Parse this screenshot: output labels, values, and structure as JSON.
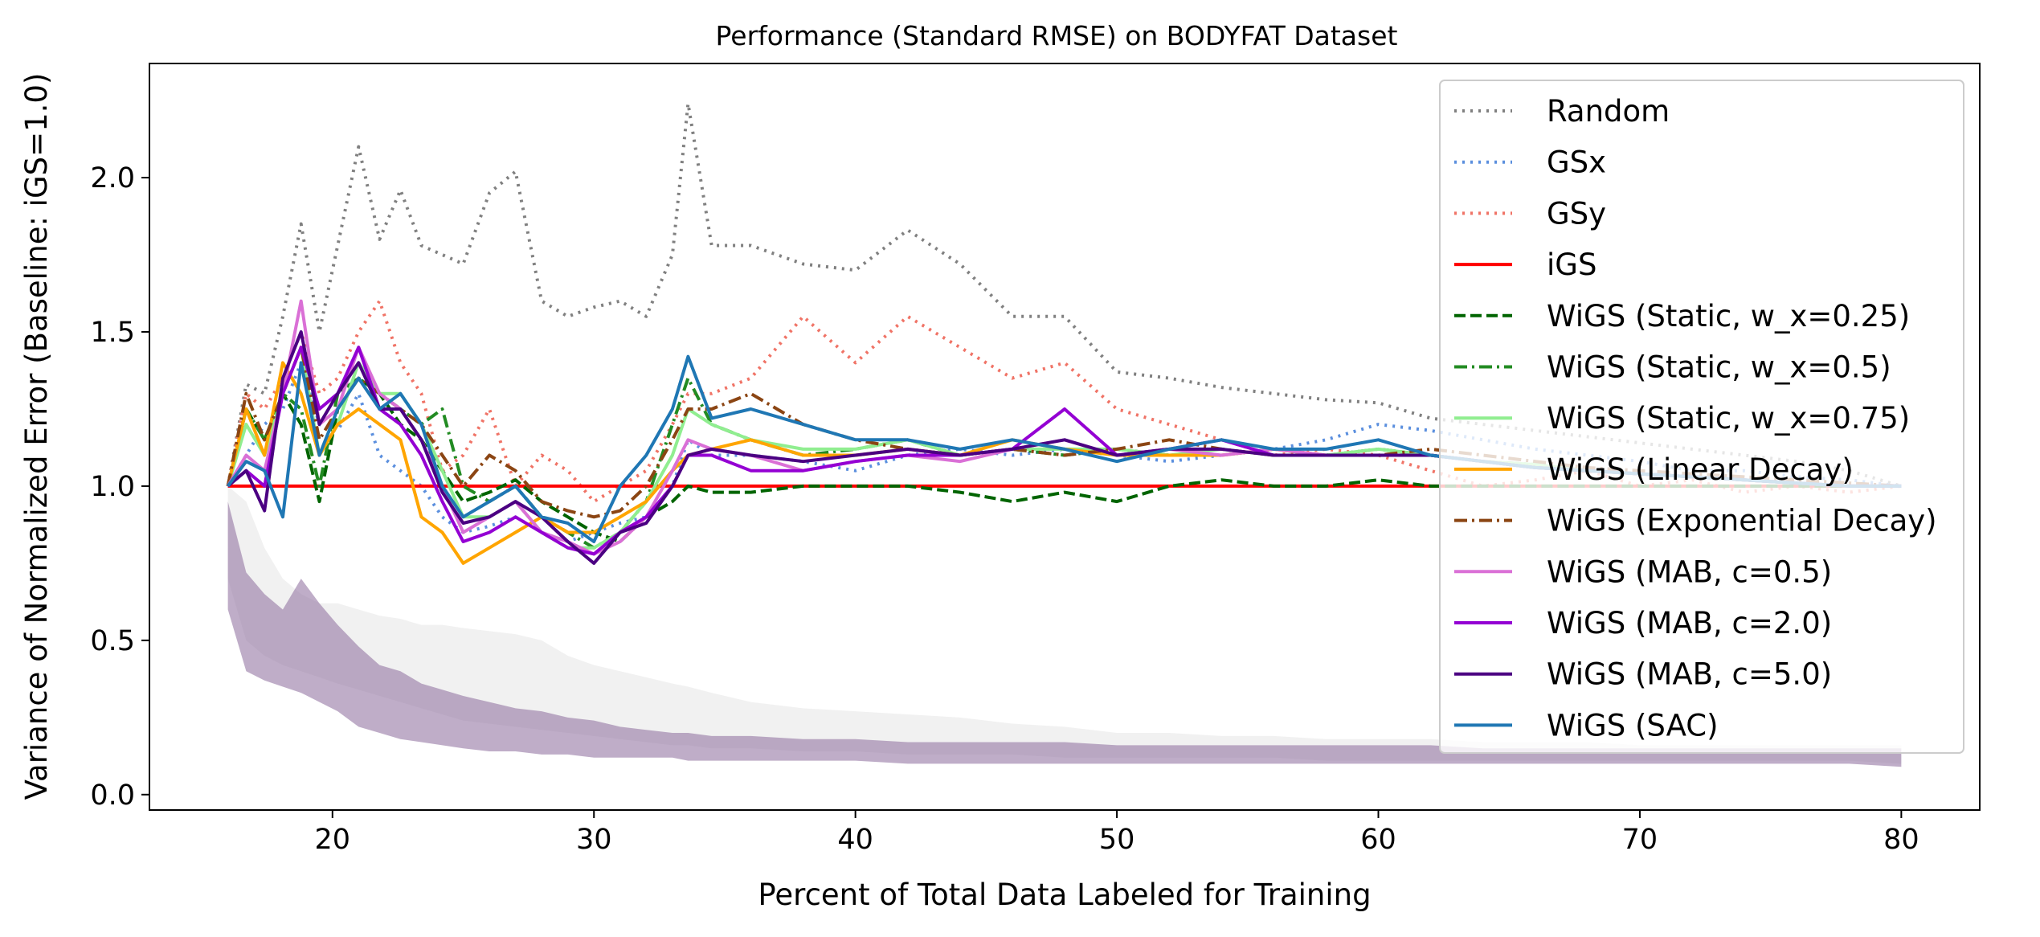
{
  "chart_data": {
    "type": "line",
    "title": "Performance (Standard RMSE) on BODYFAT Dataset",
    "xlabel": "Percent of Total Data Labeled for Training",
    "ylabel": "Variance of Normalized Error (Baseline: iGS=1.0)",
    "xlim": [
      13,
      83
    ],
    "ylim": [
      -0.05,
      2.37
    ],
    "xticks": [
      20,
      30,
      40,
      50,
      60,
      70,
      80
    ],
    "yticks": [
      0.0,
      0.5,
      1.0,
      1.5,
      2.0
    ],
    "xtick_labels": [
      "20",
      "30",
      "40",
      "50",
      "60",
      "70",
      "80"
    ],
    "ytick_labels": [
      "0.0",
      "0.5",
      "1.0",
      "1.5",
      "2.0"
    ],
    "grid": false,
    "legend_position": "upper right",
    "x": [
      16,
      16.7,
      17.4,
      18.1,
      18.8,
      19.5,
      20.2,
      21,
      21.8,
      22.6,
      23.4,
      24.2,
      25,
      26,
      27,
      28,
      29,
      30,
      31,
      32,
      33,
      33.6,
      34.5,
      36,
      38,
      40,
      42,
      44,
      46,
      48,
      50,
      52,
      54,
      56,
      58,
      60,
      62,
      64,
      66,
      68,
      70,
      72,
      74,
      76,
      78,
      80
    ],
    "series": [
      {
        "name": "Random",
        "color": "#808080",
        "style": "dotted",
        "values": [
          1.0,
          1.33,
          1.3,
          1.55,
          1.85,
          1.5,
          1.78,
          2.1,
          1.8,
          1.96,
          1.78,
          1.75,
          1.72,
          1.95,
          2.02,
          1.6,
          1.55,
          1.58,
          1.6,
          1.55,
          1.75,
          2.24,
          1.78,
          1.78,
          1.72,
          1.7,
          1.83,
          1.72,
          1.55,
          1.55,
          1.37,
          1.35,
          1.32,
          1.3,
          1.28,
          1.27,
          1.22,
          1.2,
          1.18,
          1.16,
          1.14,
          1.12,
          1.1,
          1.08,
          1.05,
          1.0
        ]
      },
      {
        "name": "GSx",
        "color": "#5b8fde",
        "style": "dotted",
        "values": [
          1.0,
          1.1,
          1.2,
          1.25,
          1.4,
          1.2,
          1.18,
          1.3,
          1.1,
          1.05,
          1.0,
          0.9,
          0.85,
          0.87,
          0.9,
          0.85,
          0.82,
          0.85,
          0.88,
          0.9,
          1.0,
          1.15,
          1.1,
          1.1,
          1.08,
          1.05,
          1.1,
          1.12,
          1.1,
          1.12,
          1.1,
          1.08,
          1.1,
          1.12,
          1.15,
          1.2,
          1.18,
          1.15,
          1.12,
          1.1,
          1.08,
          1.05,
          1.05,
          1.03,
          1.02,
          1.0
        ]
      },
      {
        "name": "GSy",
        "color": "#f07366",
        "style": "dotted",
        "values": [
          1.0,
          1.3,
          1.25,
          1.35,
          1.5,
          1.3,
          1.35,
          1.5,
          1.6,
          1.4,
          1.3,
          1.05,
          1.1,
          1.25,
          1.0,
          1.1,
          1.05,
          0.95,
          1.0,
          1.05,
          1.2,
          1.3,
          1.3,
          1.35,
          1.55,
          1.4,
          1.55,
          1.45,
          1.35,
          1.4,
          1.25,
          1.2,
          1.15,
          1.1,
          1.12,
          1.1,
          1.05,
          1.0,
          1.02,
          1.05,
          1.0,
          1.02,
          0.98,
          1.0,
          0.98,
          1.0
        ]
      },
      {
        "name": "iGS",
        "color": "#ff0000",
        "style": "solid",
        "values": [
          1.0,
          1.0,
          1.0,
          1.0,
          1.0,
          1.0,
          1.0,
          1.0,
          1.0,
          1.0,
          1.0,
          1.0,
          1.0,
          1.0,
          1.0,
          1.0,
          1.0,
          1.0,
          1.0,
          1.0,
          1.0,
          1.0,
          1.0,
          1.0,
          1.0,
          1.0,
          1.0,
          1.0,
          1.0,
          1.0,
          1.0,
          1.0,
          1.0,
          1.0,
          1.0,
          1.0,
          1.0,
          1.0,
          1.0,
          1.0,
          1.0,
          1.0,
          1.0,
          1.0,
          1.0,
          1.0
        ]
      },
      {
        "name": "WiGS (Static, w_x=0.25)",
        "color": "#006400",
        "style": "dashed",
        "values": [
          1.0,
          1.25,
          1.15,
          1.3,
          1.2,
          0.95,
          1.25,
          1.35,
          1.3,
          1.2,
          1.15,
          1.05,
          0.95,
          0.98,
          1.02,
          0.95,
          0.9,
          0.85,
          0.82,
          0.9,
          0.95,
          1.0,
          0.98,
          0.98,
          1.0,
          1.0,
          1.0,
          0.98,
          0.95,
          0.98,
          0.95,
          1.0,
          1.02,
          1.0,
          1.0,
          1.02,
          1.0,
          1.0,
          1.0,
          1.0,
          1.0,
          1.0,
          1.0,
          1.0,
          1.0,
          1.0
        ]
      },
      {
        "name": "WiGS (Static, w_x=0.5)",
        "color": "#228b22",
        "style": "dashdot",
        "values": [
          1.0,
          1.25,
          1.15,
          1.3,
          1.25,
          1.0,
          1.3,
          1.35,
          1.3,
          1.25,
          1.2,
          1.25,
          1.0,
          0.95,
          1.0,
          0.9,
          0.85,
          0.8,
          0.85,
          0.95,
          1.2,
          1.35,
          1.2,
          1.15,
          1.1,
          1.12,
          1.15,
          1.1,
          1.12,
          1.1,
          1.12,
          1.1,
          1.1,
          1.12,
          1.1,
          1.12,
          1.1,
          1.08,
          1.07,
          1.05,
          1.04,
          1.03,
          1.02,
          1.01,
          1.0,
          1.0
        ]
      },
      {
        "name": "WiGS (Static, w_x=0.75)",
        "color": "#90ee90",
        "style": "solid",
        "values": [
          1.0,
          1.2,
          1.1,
          1.3,
          1.45,
          1.1,
          1.2,
          1.4,
          1.3,
          1.3,
          1.2,
          1.05,
          0.9,
          0.9,
          0.95,
          0.85,
          0.8,
          0.8,
          0.85,
          0.95,
          1.1,
          1.25,
          1.2,
          1.15,
          1.12,
          1.12,
          1.15,
          1.1,
          1.12,
          1.12,
          1.12,
          1.1,
          1.12,
          1.1,
          1.1,
          1.12,
          1.1,
          1.08,
          1.07,
          1.05,
          1.04,
          1.03,
          1.02,
          1.01,
          1.0,
          1.0
        ]
      },
      {
        "name": "WiGS (Linear Decay)",
        "color": "#ffa500",
        "style": "solid",
        "values": [
          1.0,
          1.25,
          1.1,
          1.4,
          1.3,
          1.1,
          1.2,
          1.25,
          1.2,
          1.15,
          0.9,
          0.85,
          0.75,
          0.8,
          0.85,
          0.9,
          0.85,
          0.85,
          0.9,
          0.95,
          1.05,
          1.1,
          1.12,
          1.15,
          1.1,
          1.1,
          1.12,
          1.1,
          1.15,
          1.12,
          1.1,
          1.1,
          1.1,
          1.12,
          1.1,
          1.1,
          1.1,
          1.08,
          1.06,
          1.05,
          1.04,
          1.03,
          1.02,
          1.01,
          1.0,
          1.0
        ]
      },
      {
        "name": "WiGS (Exponential Decay)",
        "color": "#8b4513",
        "style": "dashdot",
        "values": [
          1.0,
          1.3,
          1.15,
          1.3,
          1.45,
          1.15,
          1.25,
          1.35,
          1.3,
          1.25,
          1.2,
          1.1,
          1.0,
          1.1,
          1.05,
          0.95,
          0.92,
          0.9,
          0.92,
          1.0,
          1.15,
          1.25,
          1.25,
          1.3,
          1.2,
          1.15,
          1.12,
          1.1,
          1.12,
          1.1,
          1.12,
          1.15,
          1.12,
          1.1,
          1.1,
          1.1,
          1.12,
          1.1,
          1.08,
          1.06,
          1.05,
          1.04,
          1.03,
          1.02,
          1.01,
          1.0
        ]
      },
      {
        "name": "WiGS (MAB, c=0.5)",
        "color": "#da70d6",
        "style": "solid",
        "values": [
          1.0,
          1.1,
          1.05,
          1.3,
          1.6,
          1.2,
          1.25,
          1.45,
          1.3,
          1.25,
          1.15,
          1.0,
          0.85,
          0.9,
          0.95,
          0.85,
          0.82,
          0.78,
          0.82,
          0.9,
          1.05,
          1.15,
          1.12,
          1.1,
          1.05,
          1.08,
          1.1,
          1.08,
          1.12,
          1.15,
          1.1,
          1.12,
          1.1,
          1.12,
          1.1,
          1.1,
          1.1,
          1.08,
          1.06,
          1.05,
          1.04,
          1.03,
          1.02,
          1.01,
          1.0,
          1.0
        ]
      },
      {
        "name": "WiGS (MAB, c=2.0)",
        "color": "#9400d3",
        "style": "solid",
        "values": [
          1.0,
          1.05,
          1.0,
          1.3,
          1.45,
          1.25,
          1.3,
          1.45,
          1.25,
          1.2,
          1.1,
          0.95,
          0.82,
          0.85,
          0.9,
          0.85,
          0.8,
          0.78,
          0.85,
          0.9,
          1.0,
          1.1,
          1.1,
          1.05,
          1.05,
          1.08,
          1.1,
          1.1,
          1.12,
          1.25,
          1.1,
          1.12,
          1.15,
          1.1,
          1.1,
          1.1,
          1.1,
          1.08,
          1.06,
          1.05,
          1.04,
          1.03,
          1.02,
          1.01,
          1.0,
          1.0
        ]
      },
      {
        "name": "WiGS (MAB, c=5.0)",
        "color": "#4b0082",
        "style": "solid",
        "values": [
          1.0,
          1.05,
          0.92,
          1.35,
          1.5,
          1.2,
          1.3,
          1.4,
          1.25,
          1.25,
          1.15,
          0.98,
          0.88,
          0.9,
          0.95,
          0.9,
          0.82,
          0.75,
          0.85,
          0.88,
          1.0,
          1.1,
          1.12,
          1.1,
          1.08,
          1.1,
          1.12,
          1.1,
          1.12,
          1.15,
          1.1,
          1.12,
          1.12,
          1.1,
          1.1,
          1.1,
          1.1,
          1.08,
          1.06,
          1.05,
          1.04,
          1.03,
          1.02,
          1.01,
          1.0,
          1.0
        ]
      },
      {
        "name": "WiGS (SAC)",
        "color": "#1f77b4",
        "style": "solid",
        "values": [
          1.0,
          1.08,
          1.05,
          0.9,
          1.4,
          1.1,
          1.25,
          1.35,
          1.25,
          1.3,
          1.2,
          1.0,
          0.9,
          0.95,
          1.0,
          0.9,
          0.88,
          0.82,
          1.0,
          1.1,
          1.25,
          1.42,
          1.22,
          1.25,
          1.2,
          1.15,
          1.15,
          1.12,
          1.15,
          1.12,
          1.08,
          1.12,
          1.15,
          1.12,
          1.12,
          1.15,
          1.1,
          1.08,
          1.06,
          1.05,
          1.04,
          1.03,
          1.02,
          1.01,
          1.0,
          1.0
        ]
      }
    ],
    "bands": {
      "upper_random": [
        1.0,
        0.95,
        0.8,
        0.7,
        0.65,
        0.62,
        0.62,
        0.6,
        0.58,
        0.57,
        0.55,
        0.55,
        0.54,
        0.53,
        0.52,
        0.5,
        0.45,
        0.42,
        0.4,
        0.38,
        0.36,
        0.35,
        0.33,
        0.3,
        0.28,
        0.27,
        0.26,
        0.25,
        0.23,
        0.22,
        0.2,
        0.2,
        0.19,
        0.19,
        0.18,
        0.18,
        0.18,
        0.17,
        0.17,
        0.17,
        0.16,
        0.16,
        0.16,
        0.16,
        0.16,
        0.16
      ],
      "lower_random": [
        0.7,
        0.5,
        0.45,
        0.42,
        0.4,
        0.38,
        0.36,
        0.34,
        0.32,
        0.3,
        0.28,
        0.26,
        0.24,
        0.23,
        0.22,
        0.21,
        0.2,
        0.19,
        0.18,
        0.17,
        0.16,
        0.16,
        0.15,
        0.15,
        0.14,
        0.14,
        0.13,
        0.13,
        0.13,
        0.12,
        0.12,
        0.12,
        0.12,
        0.12,
        0.11,
        0.11,
        0.11,
        0.11,
        0.11,
        0.11,
        0.11,
        0.11,
        0.11,
        0.11,
        0.11,
        0.1
      ],
      "upper_methods": [
        0.95,
        0.72,
        0.65,
        0.6,
        0.7,
        0.62,
        0.55,
        0.48,
        0.42,
        0.4,
        0.36,
        0.34,
        0.32,
        0.3,
        0.28,
        0.27,
        0.25,
        0.24,
        0.22,
        0.21,
        0.2,
        0.2,
        0.19,
        0.19,
        0.18,
        0.18,
        0.17,
        0.17,
        0.17,
        0.17,
        0.16,
        0.16,
        0.16,
        0.16,
        0.16,
        0.16,
        0.16,
        0.15,
        0.15,
        0.15,
        0.15,
        0.15,
        0.15,
        0.15,
        0.15,
        0.15
      ],
      "lower_methods": [
        0.6,
        0.4,
        0.37,
        0.35,
        0.33,
        0.3,
        0.27,
        0.22,
        0.2,
        0.18,
        0.17,
        0.16,
        0.15,
        0.14,
        0.14,
        0.13,
        0.13,
        0.12,
        0.12,
        0.12,
        0.12,
        0.11,
        0.11,
        0.11,
        0.11,
        0.11,
        0.1,
        0.1,
        0.1,
        0.1,
        0.1,
        0.1,
        0.1,
        0.1,
        0.1,
        0.1,
        0.1,
        0.1,
        0.1,
        0.1,
        0.1,
        0.1,
        0.1,
        0.1,
        0.1,
        0.09
      ],
      "random_color": "#bdbdbd",
      "methods_color": "#8a6a9a"
    }
  }
}
